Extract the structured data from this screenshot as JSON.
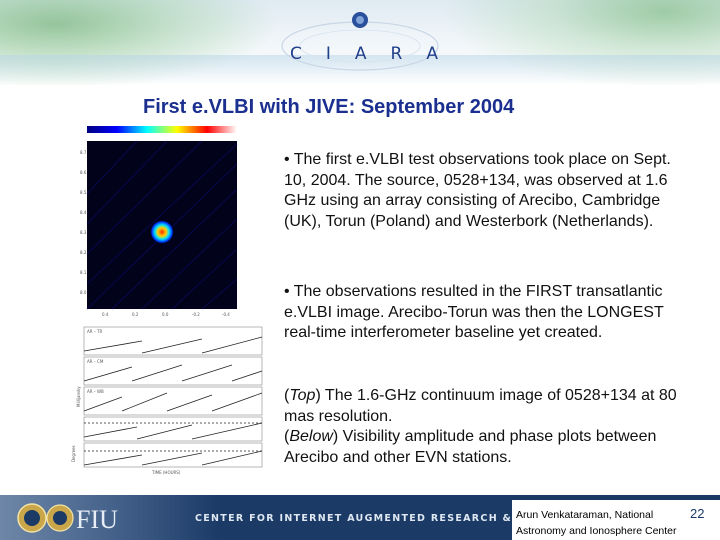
{
  "header": {
    "logo_letters": [
      "C",
      "I",
      "A",
      "R",
      "A"
    ]
  },
  "slide": {
    "title": "First e.VLBI with JIVE: September 2004",
    "paragraphs": [
      "• The first e.VLBI test observations took place on Sept. 10, 2004. The source, 0528+134, was observed at 1.6 GHz using an array consisting of Arecibo, Cambridge (UK), Torun (Poland) and Westerbork (Netherlands).",
      "• The observations resulted in the FIRST transatlantic e.VLBI image. Arecibo-Torun was then the LONGEST real-time interferometer baseline yet created."
    ],
    "caption": {
      "top_label": "Top",
      "top_text": " The 1.6-GHz continuum image of 0528+134 at 80 mas resolution.",
      "below_label": "Below",
      "below_text": " Visibility amplitude and phase plots between Arecibo and other EVN stations."
    }
  },
  "footer": {
    "fiu_label": "FIU",
    "org": "CENTER FOR INTERNET AUGMENTED RESEARCH & ASSESSMENT",
    "author_line1": "Arun Venkataraman, National",
    "author_line2": "Astronomy and Ionosphere Center",
    "page_number": "22"
  },
  "colors": {
    "title": "#1a2f8f",
    "footer_bg": "#1b3a66",
    "logo_blue": "#1f3f8a"
  }
}
